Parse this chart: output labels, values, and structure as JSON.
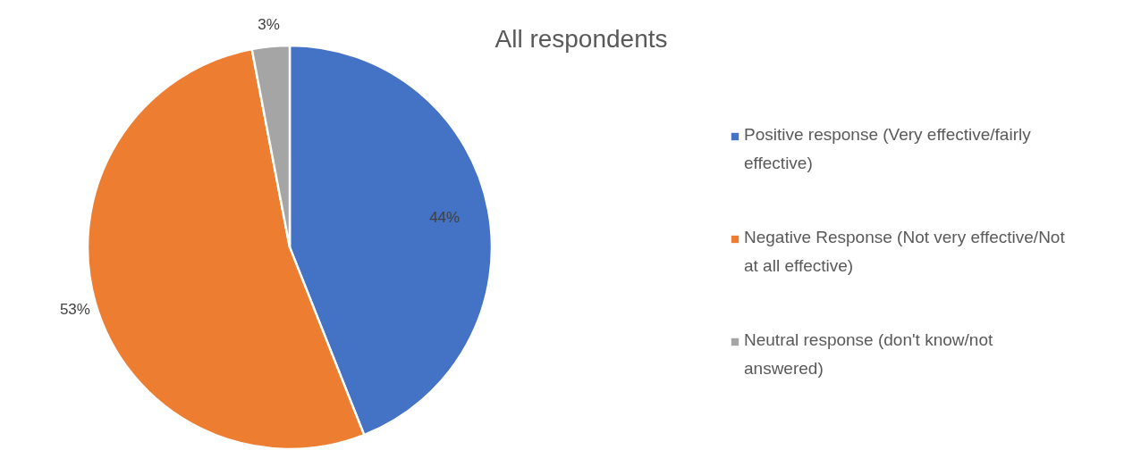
{
  "chart_data": {
    "type": "pie",
    "title": "All respondents",
    "categories": [
      "Positive response (Very effective/fairly effective)",
      "Negative Response (Not very effective/Not at all effective)",
      "Neutral response (don't know/not answered)"
    ],
    "values": [
      44,
      53,
      3
    ],
    "colors": [
      "#4472c4",
      "#ed7d31",
      "#a5a5a5"
    ],
    "value_labels": [
      "44%",
      "53%",
      "3%"
    ],
    "legend": "right"
  }
}
